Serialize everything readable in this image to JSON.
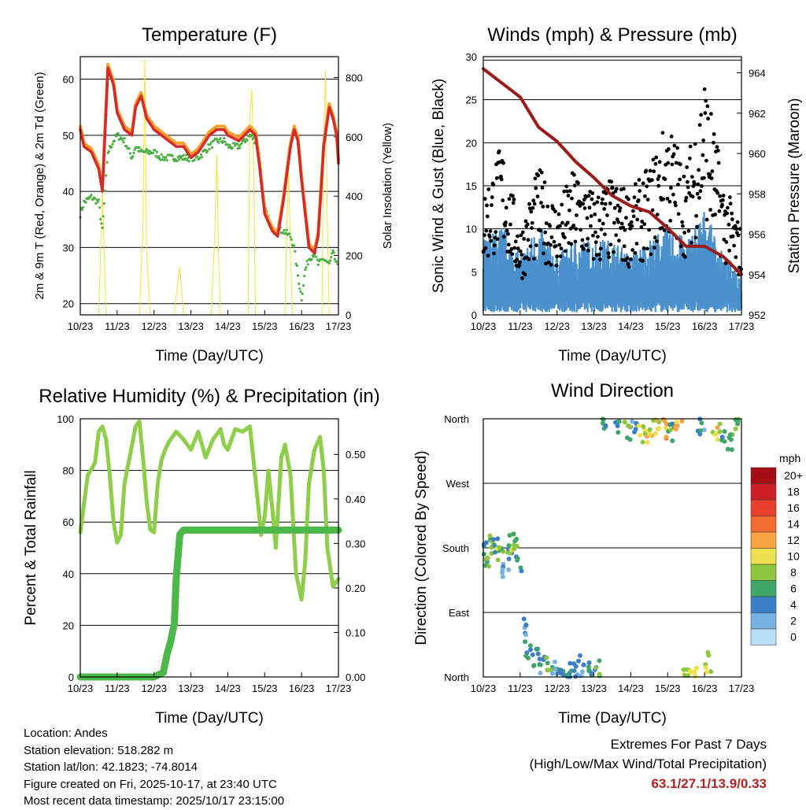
{
  "colors": {
    "temp_red": "#d42a2a",
    "temp_orange": "#f5a02a",
    "dewpoint_green": "#4caf44",
    "solar_yellow": "#f5e13c",
    "wind_blue": "#4a90cc",
    "gust_black": "#000000",
    "pressure_maroon": "#9b1b1b",
    "rh_lightgreen": "#8fce4a",
    "precip_green": "#4db84a",
    "extremes_red": "#b22222"
  },
  "time_ticks": [
    "10/23",
    "11/23",
    "12/23",
    "13/23",
    "14/23",
    "15/23",
    "16/23",
    "17/23"
  ],
  "panels": {
    "temperature": {
      "title": "Temperature (F)",
      "xlabel": "Time (Day/UTC)",
      "ylabel": "2m & 9m T (Red, Orange) & 2m Td (Green)",
      "ylabel_right": "Solar Insolation (Yellow)",
      "yticks": [
        "20",
        "30",
        "40",
        "50",
        "60"
      ],
      "yticks_right": [
        "0",
        "200",
        "400",
        "600",
        "800"
      ]
    },
    "winds": {
      "title": "Winds (mph) & Pressure (mb)",
      "xlabel": "Time (Day/UTC)",
      "ylabel": "Sonic Wind & Gust (Blue, Black)",
      "ylabel_right": "Station Pressure (Maroon)",
      "yticks": [
        "0",
        "5",
        "10",
        "15",
        "20",
        "25",
        "30"
      ],
      "yticks_right": [
        "952",
        "954",
        "956",
        "958",
        "960",
        "962",
        "964"
      ]
    },
    "humidity": {
      "title": "Relative Humidity (%) & Precipitation (in)",
      "xlabel": "Time (Day/UTC)",
      "ylabel": "Percent & Total Rainfall",
      "yticks": [
        "0",
        "20",
        "40",
        "60",
        "80",
        "100"
      ],
      "yticks_right": [
        "0.00",
        "0.10",
        "0.20",
        "0.30",
        "0.40",
        "0.50"
      ]
    },
    "direction": {
      "title": "Wind Direction",
      "xlabel": "Time (Day/UTC)",
      "ylabel": "Direction (Colored By Speed)",
      "yticks": [
        "North",
        "East",
        "South",
        "West",
        "North"
      ],
      "legend_title": "mph",
      "legend_labels": [
        "20+",
        "18",
        "16",
        "14",
        "12",
        "10",
        "8",
        "6",
        "4",
        "2",
        "0"
      ],
      "legend_colors": [
        "#a50f15",
        "#cb2027",
        "#e8412b",
        "#f26b2f",
        "#f9a345",
        "#ece04e",
        "#8cc63f",
        "#3fa66a",
        "#3b7fc4",
        "#75b2e3",
        "#b6e0f7"
      ]
    }
  },
  "station": {
    "location": "Location: Andes",
    "elevation": "Station elevation: 518.282 m",
    "latlon": "Station lat/lon: 42.1823; -74.8014",
    "created": "Figure created on Fri, 2025-10-17, at 23:40 UTC",
    "recent": "Most recent data timestamp: 2025/10/17 23:15:00"
  },
  "extremes": {
    "line1": "Extremes For Past 7 Days",
    "line2": "(High/Low/Max Wind/Total Precipitation)",
    "values": "63.1/27.1/13.9/0.33"
  },
  "chart_data": [
    {
      "type": "line",
      "title": "Temperature (F)",
      "xlabel": "Time (Day/UTC)",
      "ylabel": "2m & 9m T (Red, Orange) & 2m Td (Green)",
      "ylabel_right": "Solar Insolation (Yellow)",
      "ylim": [
        18,
        64
      ],
      "ylim_right": [
        0,
        870
      ],
      "xlim": [
        0,
        7
      ],
      "x": [
        0,
        0.1,
        0.3,
        0.5,
        0.6,
        0.75,
        0.9,
        1.0,
        1.2,
        1.4,
        1.5,
        1.65,
        1.8,
        2.0,
        2.2,
        2.4,
        2.6,
        2.8,
        3.0,
        3.2,
        3.5,
        3.7,
        3.9,
        4.0,
        4.3,
        4.6,
        4.75,
        4.85,
        5.0,
        5.2,
        5.35,
        5.5,
        5.7,
        5.8,
        5.9,
        6.0,
        6.1,
        6.2,
        6.35,
        6.45,
        6.6,
        6.75,
        6.85,
        6.95,
        7.0
      ],
      "series": [
        {
          "name": "2m T",
          "values": [
            51,
            48,
            47,
            44,
            40,
            62,
            59,
            54,
            51,
            50,
            55,
            57,
            53,
            51,
            50,
            49,
            48,
            48,
            46,
            47,
            50,
            51,
            51,
            50,
            49,
            51,
            50,
            45,
            36,
            33,
            32,
            38,
            48,
            51,
            49,
            42,
            36,
            30,
            29,
            32,
            48,
            55,
            53,
            50,
            45
          ]
        },
        {
          "name": "2m Td",
          "values": [
            36,
            38,
            39,
            38,
            33,
            47,
            49,
            50,
            49,
            46,
            48,
            47,
            47,
            47,
            46,
            46,
            46,
            46,
            46,
            46,
            48,
            49,
            49,
            48,
            48,
            50,
            49,
            47,
            37,
            33,
            33,
            33,
            32,
            30,
            25,
            21,
            26,
            28,
            29,
            27,
            28,
            27,
            29,
            27,
            26
          ]
        },
        {
          "name": "Solar Insolation",
          "x": [
            0.5,
            0.6,
            0.7,
            1.6,
            1.7,
            1.75,
            1.8,
            1.9,
            2.55,
            2.65,
            2.7,
            2.75,
            2.8,
            3.55,
            3.65,
            3.7,
            3.75,
            3.8,
            4.55,
            4.6,
            4.65,
            4.7,
            4.75,
            5.55,
            5.6,
            5.65,
            5.7,
            5.75,
            6.55,
            6.6,
            6.65,
            6.7,
            6.75
          ],
          "values": [
            0,
            420,
            0,
            0,
            300,
            860,
            200,
            0,
            0,
            120,
            160,
            80,
            0,
            0,
            280,
            540,
            200,
            0,
            0,
            680,
            760,
            500,
            0,
            0,
            300,
            480,
            200,
            0,
            0,
            600,
            820,
            300,
            0
          ]
        }
      ]
    },
    {
      "type": "line",
      "title": "Winds (mph) & Pressure (mb)",
      "xlabel": "Time (Day/UTC)",
      "ylabel": "Sonic Wind & Gust (Blue, Black)",
      "ylabel_right": "Station Pressure (Maroon)",
      "ylim": [
        0,
        30
      ],
      "ylim_right": [
        952,
        964.8
      ],
      "xlim": [
        0,
        7
      ],
      "x": [
        0,
        0.5,
        1.0,
        1.5,
        2.0,
        2.5,
        3.0,
        3.5,
        4.0,
        4.5,
        5.0,
        5.5,
        6.0,
        6.5,
        7.0
      ],
      "series": [
        {
          "name": "Sonic Wind (avg)",
          "values": [
            5,
            6,
            4,
            6,
            4,
            5,
            5,
            5,
            4,
            5,
            6,
            5,
            7,
            4,
            3
          ]
        },
        {
          "name": "Gust (avg)",
          "values": [
            10,
            14,
            7,
            12,
            9,
            12,
            10,
            11,
            10,
            12,
            16,
            12,
            20,
            11,
            7
          ]
        },
        {
          "name": "Station Pressure",
          "values": [
            964.2,
            963.5,
            962.8,
            961.3,
            960.6,
            959.6,
            958.8,
            957.9,
            957.4,
            957.1,
            956.3,
            955.4,
            955.4,
            954.9,
            954.0
          ]
        }
      ]
    },
    {
      "type": "line",
      "title": "Relative Humidity (%) & Precipitation (in)",
      "xlabel": "Time (Day/UTC)",
      "ylabel": "Percent & Total Rainfall",
      "ylim": [
        0,
        100
      ],
      "ylim_right": [
        0,
        0.58
      ],
      "xlim": [
        0,
        7
      ],
      "series": [
        {
          "name": "Relative Humidity",
          "x": [
            0,
            0.2,
            0.4,
            0.5,
            0.6,
            0.7,
            0.8,
            0.9,
            1.0,
            1.1,
            1.2,
            1.35,
            1.5,
            1.6,
            1.7,
            1.8,
            1.9,
            2.0,
            2.1,
            2.2,
            2.3,
            2.4,
            2.6,
            2.8,
            3.0,
            3.2,
            3.4,
            3.6,
            3.8,
            3.9,
            4.0,
            4.2,
            4.4,
            4.6,
            4.8,
            4.9,
            5.0,
            5.1,
            5.2,
            5.3,
            5.45,
            5.55,
            5.7,
            5.85,
            6.0,
            6.1,
            6.2,
            6.35,
            6.5,
            6.6,
            6.7,
            6.85,
            7.0
          ],
          "values": [
            56,
            78,
            83,
            95,
            97,
            92,
            78,
            60,
            52,
            55,
            75,
            86,
            97,
            99,
            85,
            68,
            57,
            56,
            75,
            84,
            88,
            91,
            95,
            92,
            88,
            95,
            85,
            92,
            96,
            90,
            88,
            96,
            95,
            97,
            70,
            55,
            62,
            80,
            66,
            50,
            85,
            90,
            78,
            40,
            30,
            45,
            75,
            88,
            93,
            80,
            50,
            35,
            38
          ]
        },
        {
          "name": "Total Precipitation",
          "x": [
            0,
            0.5,
            1.0,
            1.5,
            2.0,
            2.25,
            2.35,
            2.45,
            2.55,
            2.6,
            2.7,
            2.8,
            3.0,
            3.5,
            4.0,
            5.0,
            6.0,
            7.0
          ],
          "values": [
            0.0,
            0.0,
            0.0,
            0.0,
            0.0,
            0.01,
            0.05,
            0.08,
            0.12,
            0.22,
            0.32,
            0.33,
            0.33,
            0.33,
            0.33,
            0.33,
            0.33,
            0.33
          ]
        }
      ]
    },
    {
      "type": "scatter",
      "title": "Wind Direction",
      "xlabel": "Time (Day/UTC)",
      "ylabel": "Direction (Colored By Speed)",
      "y_categories": [
        "North",
        "East",
        "South",
        "West",
        "North"
      ],
      "ylim": [
        0,
        360
      ],
      "xlim": [
        0,
        7
      ],
      "points_x": [
        0.05,
        0.15,
        0.25,
        0.35,
        0.45,
        0.6,
        0.7,
        0.8,
        0.85,
        0.95,
        1.1,
        1.2,
        1.4,
        1.6,
        1.8,
        1.95,
        2.1,
        2.3,
        2.5,
        2.7,
        2.9,
        3.1,
        3.3,
        3.6,
        3.9,
        4.1,
        4.3,
        4.5,
        4.7,
        4.9,
        5.1,
        5.3,
        5.5,
        5.7,
        5.9,
        6.1,
        6.3,
        6.5,
        6.7,
        6.9
      ],
      "points_deg": [
        175,
        165,
        185,
        180,
        170,
        150,
        175,
        185,
        190,
        160,
        70,
        40,
        25,
        15,
        20,
        10,
        5,
        12,
        8,
        15,
        5,
        10,
        355,
        350,
        345,
        355,
        340,
        330,
        350,
        345,
        340,
        355,
        10,
        5,
        350,
        20,
        345,
        340,
        330,
        355
      ],
      "points_speed": [
        4,
        6,
        7,
        5,
        8,
        3,
        6,
        7,
        8,
        5,
        2,
        4,
        5,
        4,
        6,
        3,
        4,
        5,
        3,
        2,
        4,
        6,
        5,
        4,
        6,
        3,
        8,
        10,
        9,
        12,
        6,
        11,
        7,
        9,
        4,
        8,
        10,
        6,
        5,
        7
      ]
    }
  ]
}
